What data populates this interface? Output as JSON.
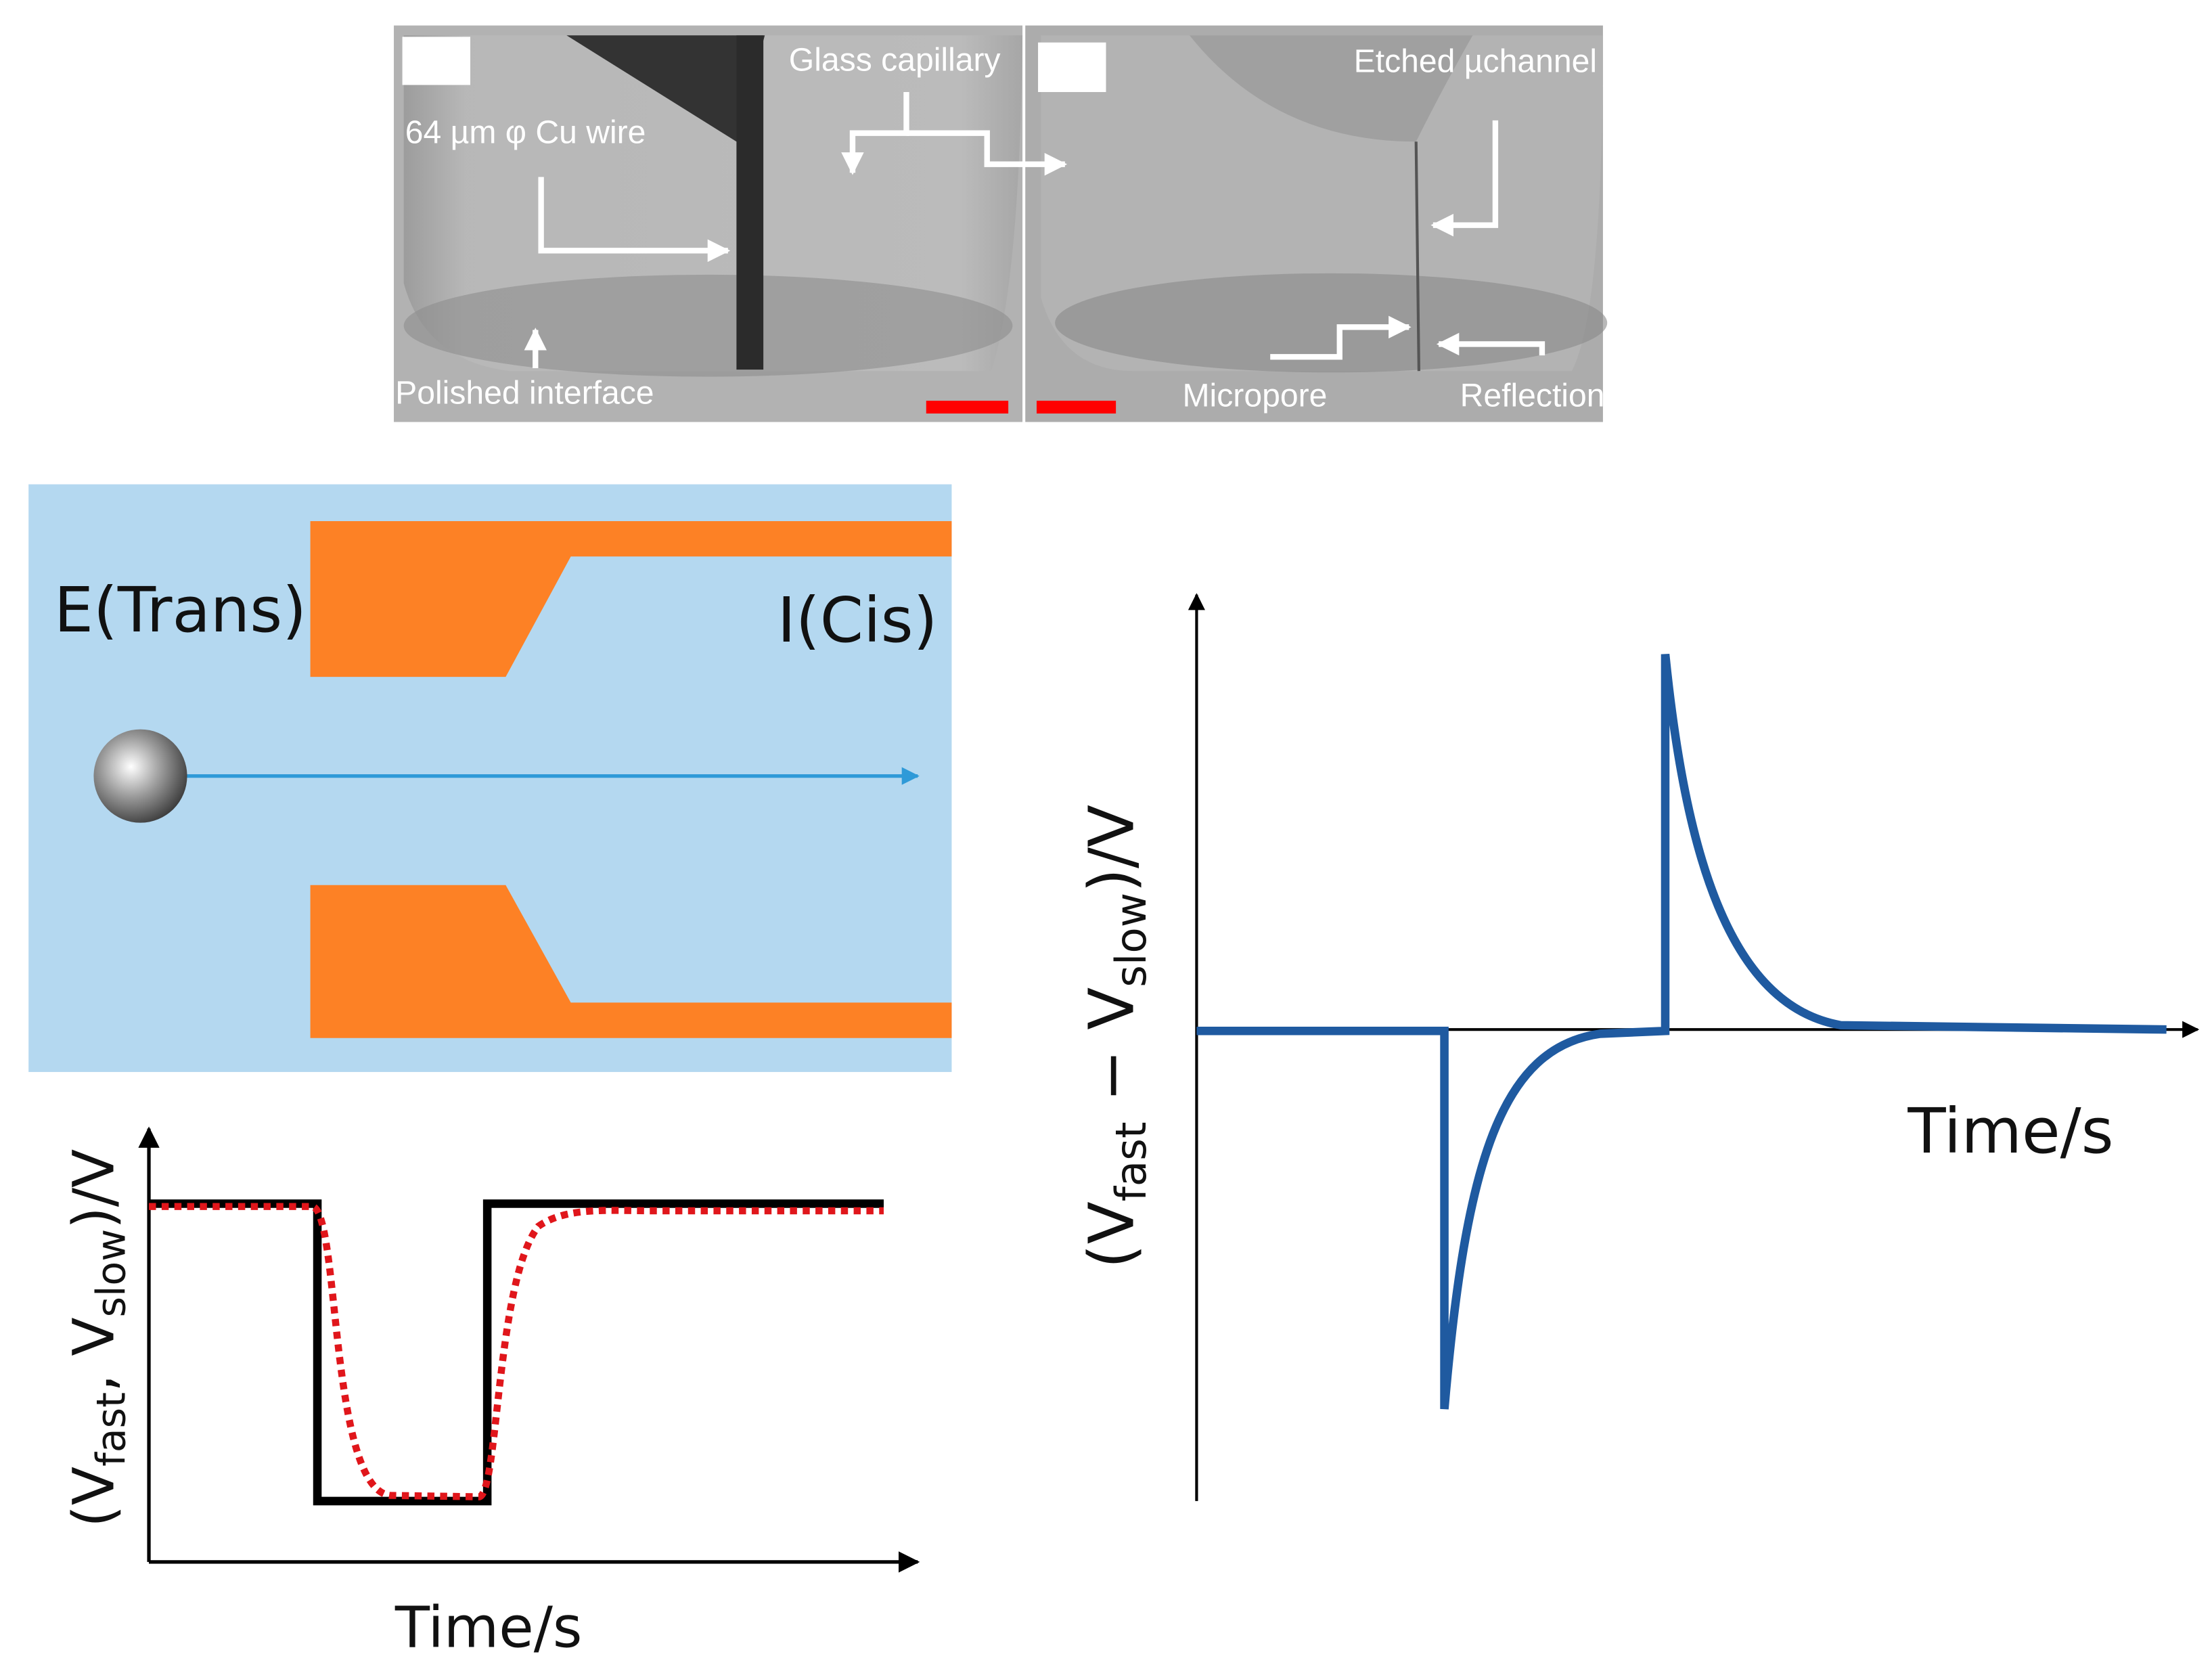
{
  "photo": {
    "labels": {
      "wire": "64 µm φ Cu wire",
      "capillary": "Glass capillary",
      "interface": "Polished interface",
      "channel": "Etched µchannel",
      "micropore": "Micropore",
      "reflection": "Reflection"
    },
    "scale_bar_color": "#ff0000"
  },
  "schematic": {
    "left_label": "E(Trans)",
    "right_label": "I(Cis)",
    "background_color": "#b4d8f0",
    "wall_color": "#fd8125",
    "arrow_color": "#2f9ad8"
  },
  "chart_left": {
    "ylabel_main": "(V",
    "ylabel_sub1": "fast",
    "ylabel_mid": ", V",
    "ylabel_sub2": "slow",
    "ylabel_end": ")/V",
    "xlabel": "Time/s",
    "series_colors": {
      "step": "#000000",
      "smoothed": "#e0161b"
    }
  },
  "chart_right": {
    "ylabel_main": "(V",
    "ylabel_sub1": "fast",
    "ylabel_mid": " − V",
    "ylabel_sub2": "slow",
    "ylabel_end": ")/V",
    "xlabel": "Time/s",
    "line_color": "#1f5aa0"
  }
}
